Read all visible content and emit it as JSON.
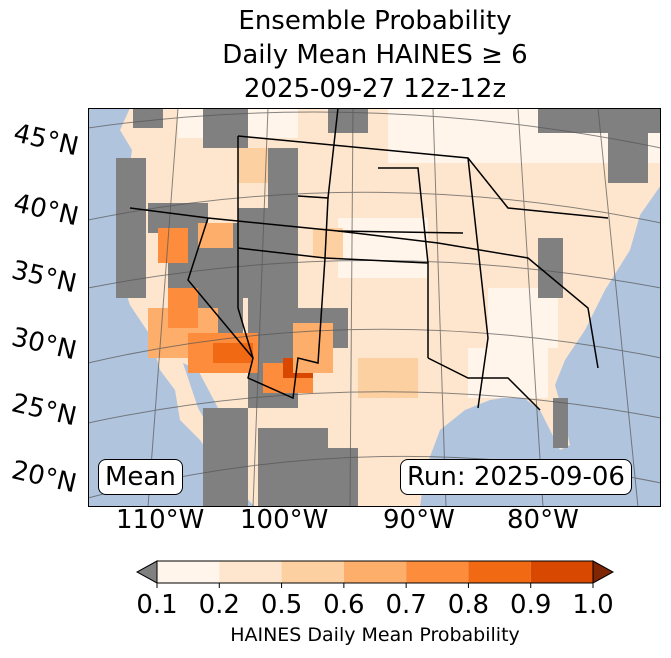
{
  "title": {
    "line1": "Ensemble Probability",
    "line2": "Daily Mean HAINES ≥ 6",
    "line3": "2025-09-27 12z-12z"
  },
  "lat_labels": [
    "45°N",
    "40°N",
    "35°N",
    "30°N",
    "25°N",
    "20°N"
  ],
  "lon_labels": [
    "110°W",
    "100°W",
    "90°W",
    "80°W"
  ],
  "mean_box": "Mean",
  "run_box": "Run: 2025-09-06",
  "colorbar": {
    "ticks": [
      "0.1",
      "0.2",
      "0.5",
      "0.6",
      "0.7",
      "0.8",
      "0.9",
      "1.0"
    ],
    "label": "HAINES Daily Mean Probability",
    "under_color": "#808080",
    "over_color": "#7f2704",
    "colors": [
      "#fff5eb",
      "#fee6ce",
      "#fdd0a2",
      "#fdae6b",
      "#fd8d3c",
      "#f16913",
      "#d94801"
    ]
  },
  "colors": {
    "ocean": "#b0c4de",
    "no_data": "#808080",
    "land_base": "#fee6ce"
  }
}
